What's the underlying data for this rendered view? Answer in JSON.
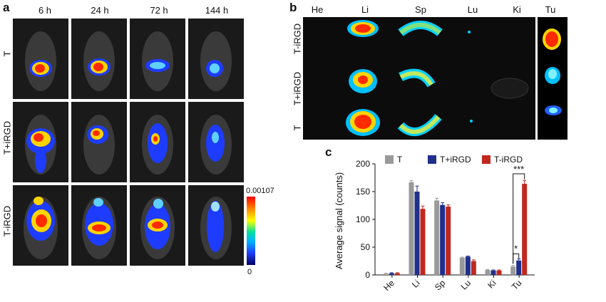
{
  "panel_a": {
    "letter": "a",
    "columns": [
      "6 h",
      "24 h",
      "72 h",
      "144 h"
    ],
    "rows": [
      "T",
      "T+iRGD",
      "T-iRGD"
    ],
    "colorbar": {
      "max": "0.00107",
      "min": "0"
    }
  },
  "panel_b": {
    "letter": "b",
    "columns": [
      "He",
      "Li",
      "Sp",
      "Lu",
      "Ki",
      "Tu"
    ],
    "rows": [
      "T-iRGD",
      "T+iRGD",
      "T"
    ]
  },
  "panel_c": {
    "letter": "c"
  },
  "colors": {
    "T": "#9a9a9a",
    "T+iRGD": "#1f2f8a",
    "T-iRGD": "#c0281e"
  },
  "chart_data": {
    "type": "bar",
    "categories": [
      "He",
      "Li",
      "Sp",
      "Lu",
      "Ki",
      "Tu"
    ],
    "ylabel": "Average signal (counts)",
    "xlabel": "",
    "ylim": [
      0,
      200
    ],
    "yticks": [
      0,
      50,
      100,
      150,
      200
    ],
    "legend_position": "top",
    "series": [
      {
        "name": "T",
        "values": [
          2,
          167,
          134,
          31,
          9,
          15
        ],
        "errors": [
          1,
          3,
          4,
          1,
          1,
          2
        ]
      },
      {
        "name": "T+iRGD",
        "values": [
          3,
          150,
          126,
          33,
          8,
          26
        ],
        "errors": [
          1,
          10,
          4,
          1,
          1,
          3
        ]
      },
      {
        "name": "T-iRGD",
        "values": [
          3,
          119,
          123,
          25,
          8,
          164
        ],
        "errors": [
          1,
          5,
          3,
          2,
          1,
          6
        ]
      }
    ],
    "annotations": [
      "*",
      "***"
    ]
  }
}
